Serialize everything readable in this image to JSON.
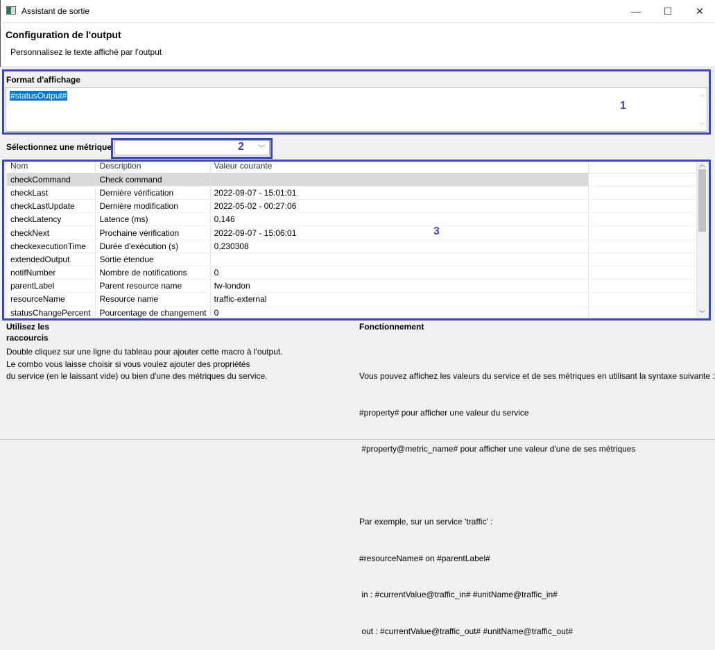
{
  "window": {
    "title": "Assistant de sortie",
    "minimize": "—",
    "maximize": "☐",
    "close": "✕"
  },
  "header": {
    "title": "Configuration de l'output",
    "subtitle": "Personnalisez le texte affiché par l'output"
  },
  "format": {
    "label": "Format d'affichage",
    "value": "#statusOutput#"
  },
  "metric": {
    "label": "Sélectionnez une métrique",
    "value": ""
  },
  "annotations": [
    "1",
    "2",
    "3"
  ],
  "table": {
    "columns": [
      "Nom",
      "Description",
      "Valeur courante",
      ""
    ],
    "rows": [
      [
        "checkCommand",
        "Check command",
        ""
      ],
      [
        "checkLast",
        "Dernière vérification",
        "2022-09-07 - 15:01:01"
      ],
      [
        "checkLastUpdate",
        "Dernière modification",
        "2022-05-02 - 00:27:06"
      ],
      [
        "checkLatency",
        "Latence (ms)",
        "0,146"
      ],
      [
        "checkNext",
        "Prochaine vérification",
        "2022-09-07 - 15:06:01"
      ],
      [
        "checkexecutionTime",
        "Durée d'exécution (s)",
        "0,230308"
      ],
      [
        "extendedOutput",
        "Sortie étendue",
        ""
      ],
      [
        "notifNumber",
        "Nombre de notifications",
        "0"
      ],
      [
        "parentLabel",
        "Parent resource name",
        "fw-london"
      ],
      [
        "resourceName",
        "Resource name",
        "traffic-external"
      ],
      [
        "statusChangePercent",
        "Pourcentage de changement",
        "0"
      ]
    ],
    "selected_row": 0
  },
  "help_left": {
    "title_1": "Utilisez les",
    "title_2": "raccourcis",
    "lines": [
      "Double cliquez sur une ligne du tableau pour ajouter cette macro à l'output.",
      "Le combo vous laisse choisir si vous voulez ajouter des propriétés",
      "du service (en le laissant vide) ou bien d'une des métriques du service."
    ]
  },
  "help_right": {
    "title": "Fonctionnement",
    "lines": [
      "Vous pouvez affichez les valeurs du service et de ses métriques en utilisant la syntaxe suivante :",
      "#property# pour afficher une valeur du service",
      " #property@metric_name# pour afficher une valeur d'une de ses métriques",
      "",
      "Par exemple, sur un service 'traffic' :",
      "#resourceName# on #parentLabel#",
      " in : #currentValue@traffic_in# #unitName@traffic_in#",
      " out : #currentValue@traffic_out# #unitName@traffic_out#"
    ]
  }
}
